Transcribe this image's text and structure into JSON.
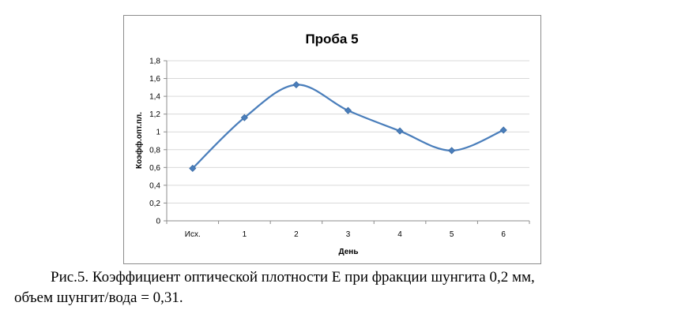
{
  "chart_data": {
    "type": "line",
    "title": "Проба 5",
    "xlabel": "День",
    "ylabel": "Коэфф.опт.пл.",
    "categories": [
      "Исх.",
      "1",
      "2",
      "3",
      "4",
      "5",
      "6"
    ],
    "series": [
      {
        "values": [
          0.59,
          1.16,
          1.53,
          1.24,
          1.01,
          0.79,
          1.02
        ]
      }
    ],
    "ylim": [
      0,
      1.8
    ],
    "yticks": [
      "0",
      "0,2",
      "0,4",
      "0,6",
      "0,8",
      "1",
      "1,2",
      "1,4",
      "1,6",
      "1,8"
    ],
    "grid": true,
    "legend": "none",
    "smooth": true,
    "colors": {
      "line": "#4a7ebb",
      "marker": "#4a7ebb",
      "grid": "#d9d9d9",
      "axis": "#8c8c8c"
    }
  },
  "caption": {
    "line1": "Рис.5. Коэффициент оптической плотности Е при фракции шунгита 0,2 мм,",
    "line2": "объем шунгит/вода = 0,31."
  }
}
